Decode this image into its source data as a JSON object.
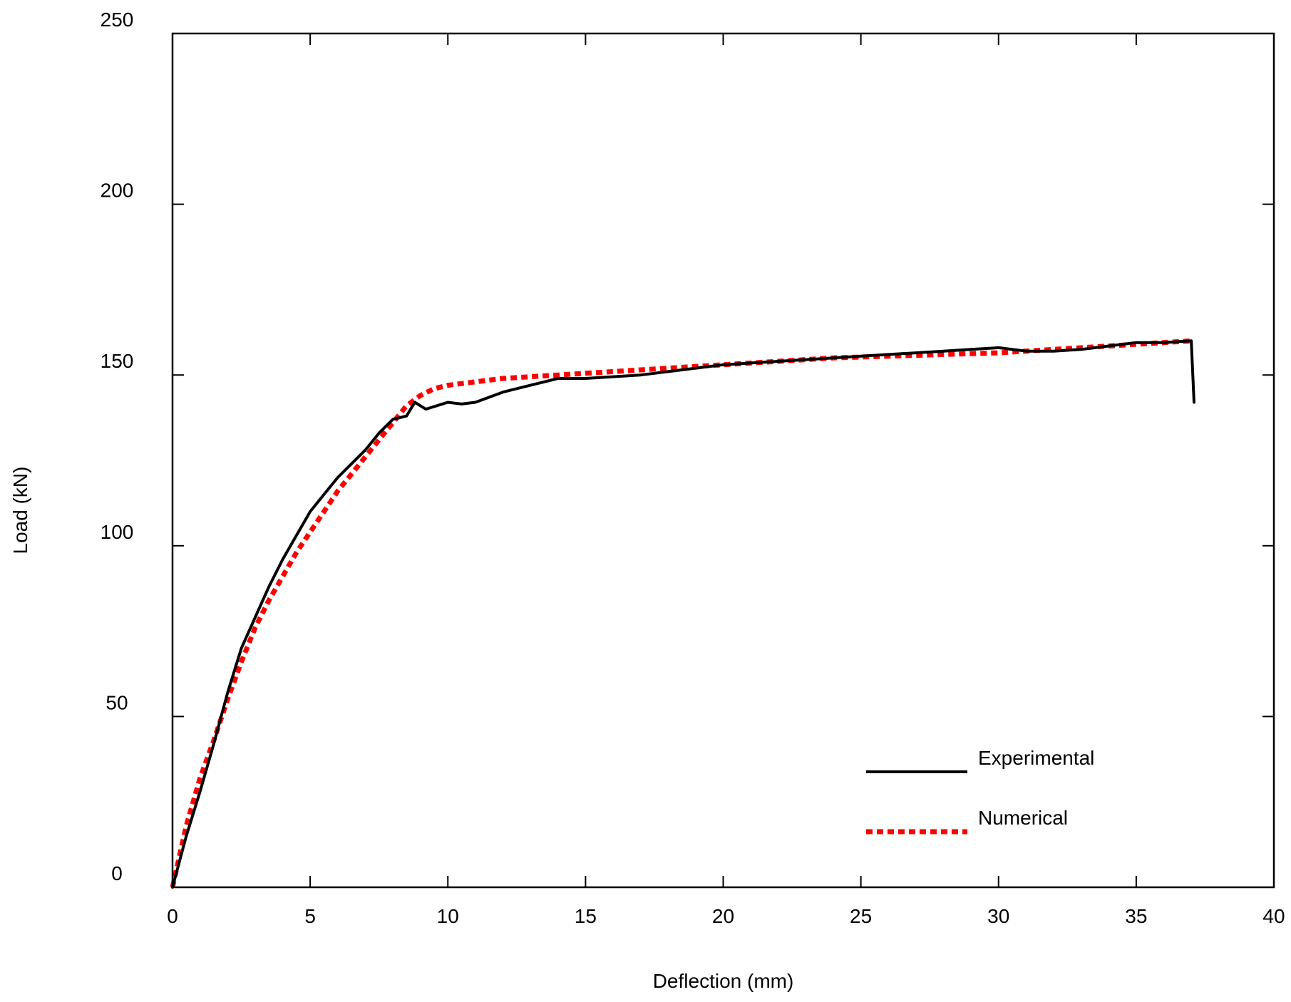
{
  "chart_data": {
    "type": "line",
    "title": "",
    "xlabel": "Deflection (mm)",
    "ylabel": "Load (kN)",
    "xlim": [
      0,
      40
    ],
    "ylim": [
      0,
      250
    ],
    "xticks": [
      0,
      5,
      10,
      15,
      20,
      25,
      30,
      35,
      40
    ],
    "yticks": [
      0,
      50,
      100,
      150,
      200,
      250
    ],
    "grid": false,
    "legend_position": "bottom-right",
    "series": [
      {
        "name": "Experimental",
        "color": "#000000",
        "style": "solid",
        "x": [
          0,
          0.5,
          1.0,
          1.5,
          2.0,
          2.5,
          3.0,
          3.5,
          4.0,
          4.5,
          5.0,
          5.5,
          6.0,
          6.5,
          7.0,
          7.5,
          8.0,
          8.5,
          8.8,
          9.2,
          9.6,
          10.0,
          10.5,
          11.0,
          12.0,
          13.0,
          14.0,
          15.0,
          16.0,
          17.0,
          18.0,
          19.0,
          20.0,
          21.0,
          22.0,
          23.0,
          24.0,
          25.0,
          26.0,
          27.0,
          28.0,
          29.0,
          30.0,
          31.0,
          32.0,
          33.0,
          34.0,
          35.0,
          36.0,
          37.0,
          37.1
        ],
        "values": [
          0,
          15,
          28,
          42,
          57,
          70,
          79,
          88,
          96,
          103,
          110,
          115,
          120,
          124,
          128,
          133,
          137,
          138,
          142,
          140,
          141,
          142,
          141.5,
          142,
          145,
          147,
          149,
          149,
          149.5,
          150,
          151,
          152,
          153,
          153.5,
          154,
          154.5,
          155,
          155.5,
          156,
          156.5,
          157,
          157.5,
          158,
          157,
          157,
          157.5,
          158.5,
          159.5,
          159.5,
          160,
          142
        ]
      },
      {
        "name": "Numerical",
        "color": "#ff0000",
        "style": "dotted",
        "x": [
          0,
          0.5,
          1.0,
          1.5,
          2.0,
          2.5,
          3.0,
          3.5,
          4.0,
          4.5,
          5.0,
          5.5,
          6.0,
          6.5,
          7.0,
          7.5,
          8.0,
          8.5,
          9.0,
          9.5,
          10.0,
          11.0,
          12.0,
          13.0,
          14.0,
          15.0,
          16.0,
          17.0,
          18.0,
          19.0,
          20.0,
          22.0,
          24.0,
          26.0,
          28.0,
          30.0,
          32.0,
          34.0,
          36.0,
          37.0
        ],
        "values": [
          0,
          18,
          32,
          43,
          55,
          66,
          76,
          84,
          91,
          98,
          104,
          110,
          116,
          121,
          126,
          131,
          136,
          141,
          144,
          146,
          147,
          148,
          149,
          149.5,
          150,
          150.5,
          151,
          151.5,
          152,
          152.5,
          153,
          154,
          155,
          155.5,
          156,
          156.5,
          157.5,
          158.5,
          159.5,
          160
        ]
      }
    ]
  }
}
